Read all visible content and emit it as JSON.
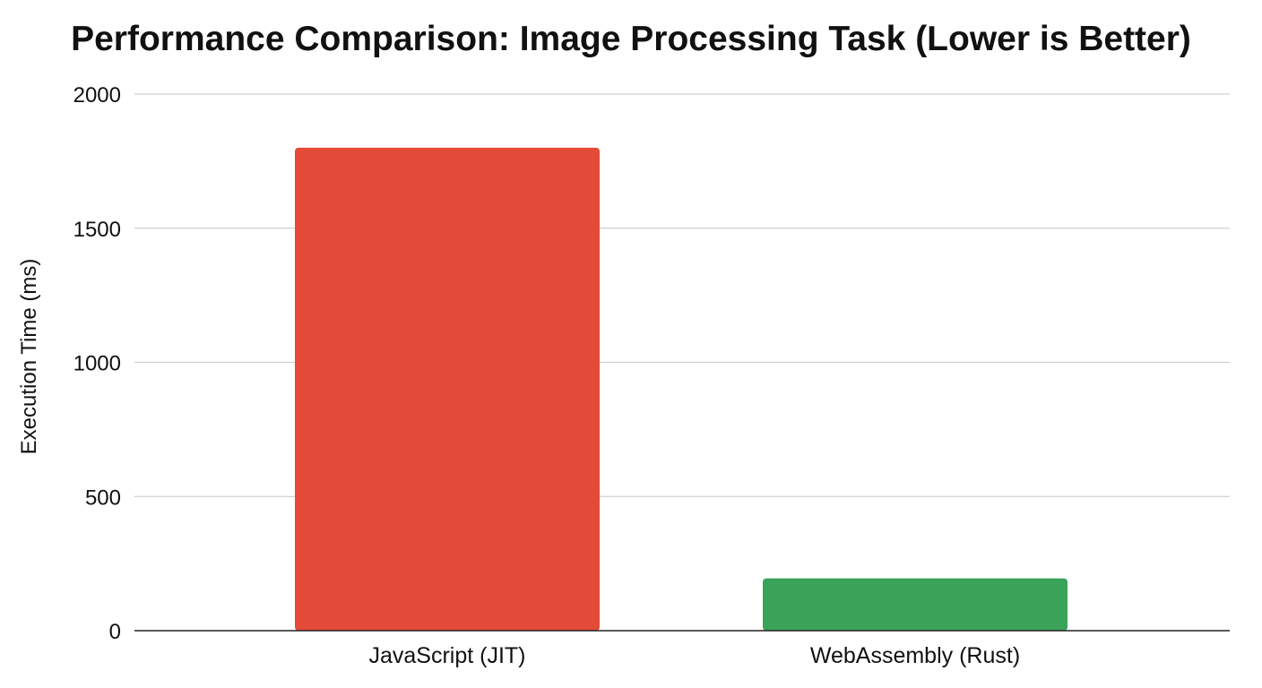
{
  "chart_data": {
    "type": "bar",
    "title": "Performance Comparison: Image Processing Task (Lower is Better)",
    "xlabel": "",
    "ylabel": "Execution Time (ms)",
    "categories": [
      "JavaScript (JIT)",
      "WebAssembly (Rust)"
    ],
    "values": [
      1800,
      195
    ],
    "colors": [
      "#E34A37",
      "#3AA35A"
    ],
    "ylim": [
      0,
      2000
    ],
    "yticks": [
      0,
      500,
      1000,
      1500,
      2000
    ],
    "grid": true,
    "legend": "none"
  }
}
